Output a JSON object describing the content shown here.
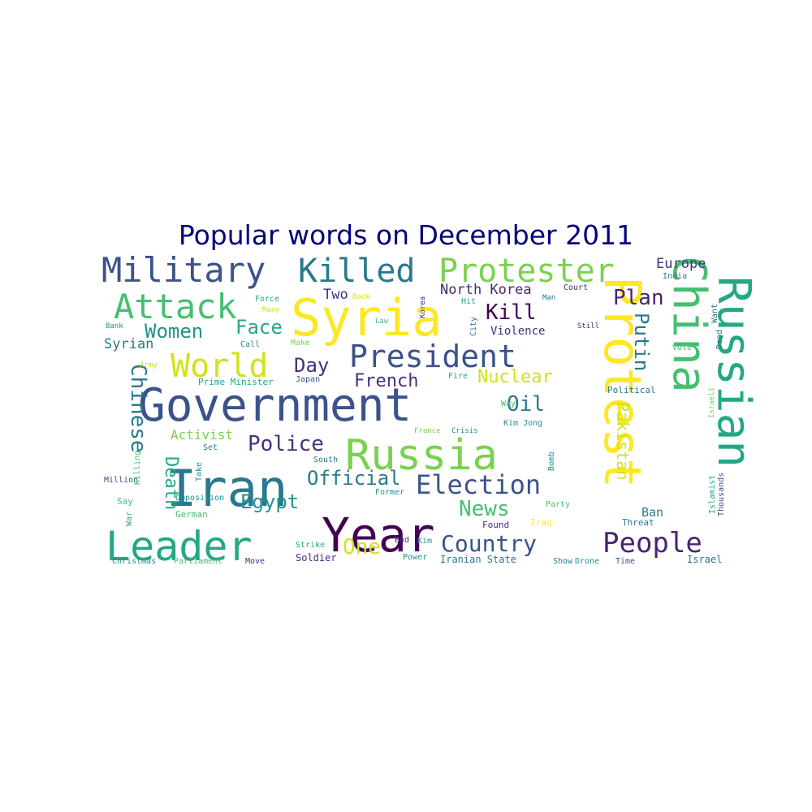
{
  "title": "Popular words on December 2011",
  "title_color": "#000080",
  "palette": {
    "navy": "#3b528b",
    "indigo": "#472f7d",
    "deep": "#440154",
    "purple": "#482475",
    "teal": "#21918c",
    "teal2": "#2a788e",
    "green": "#22a884",
    "green2": "#44bf70",
    "lime": "#7ad151",
    "yellow": "#fde725",
    "yellow2": "#d2e21b"
  },
  "words": [
    {
      "text": "Government",
      "color": "navy"
    },
    {
      "text": "Syria",
      "color": "yellow"
    },
    {
      "text": "Russia",
      "color": "lime"
    },
    {
      "text": "Protest",
      "color": "yellow"
    },
    {
      "text": "Iran",
      "color": "teal2"
    },
    {
      "text": "Year",
      "color": "deep"
    },
    {
      "text": "Leader",
      "color": "green"
    },
    {
      "text": "China",
      "color": "green2"
    },
    {
      "text": "Russian",
      "color": "green"
    },
    {
      "text": "Military",
      "color": "navy"
    },
    {
      "text": "Killed",
      "color": "teal2"
    },
    {
      "text": "Protester",
      "color": "lime"
    },
    {
      "text": "President",
      "color": "navy"
    },
    {
      "text": "Attack",
      "color": "green2"
    },
    {
      "text": "World",
      "color": "yellow2"
    },
    {
      "text": "People",
      "color": "purple"
    },
    {
      "text": "Election",
      "color": "navy"
    },
    {
      "text": "Country",
      "color": "navy"
    },
    {
      "text": "Women",
      "color": "teal"
    },
    {
      "text": "Face",
      "color": "green"
    },
    {
      "text": "Chinese",
      "color": "teal2"
    },
    {
      "text": "Police",
      "color": "indigo"
    },
    {
      "text": "Official",
      "color": "teal2"
    },
    {
      "text": "Day",
      "color": "indigo"
    },
    {
      "text": "French",
      "color": "indigo"
    },
    {
      "text": "Kill",
      "color": "deep"
    },
    {
      "text": "Plan",
      "color": "purple"
    },
    {
      "text": "Putin",
      "color": "teal2"
    },
    {
      "text": "Pakistan",
      "color": "yellow2"
    },
    {
      "text": "Nuclear",
      "color": "yellow2"
    },
    {
      "text": "Oil",
      "color": "teal2"
    },
    {
      "text": "News",
      "color": "green2"
    },
    {
      "text": "Egypt",
      "color": "teal"
    },
    {
      "text": "Death",
      "color": "green"
    },
    {
      "text": "One",
      "color": "yellow2"
    },
    {
      "text": "Europe",
      "color": "indigo"
    },
    {
      "text": "North Korea",
      "color": "purple"
    },
    {
      "text": "Two",
      "color": "indigo"
    },
    {
      "text": "Syrian",
      "color": "teal2"
    },
    {
      "text": "Activist",
      "color": "lime"
    },
    {
      "text": "Violence",
      "color": "indigo"
    },
    {
      "text": "Ban",
      "color": "teal2"
    },
    {
      "text": "Israel",
      "color": "teal2"
    },
    {
      "text": "Soldier",
      "color": "indigo"
    },
    {
      "text": "Iranian State",
      "color": "teal2"
    },
    {
      "text": "Christmas",
      "color": "teal"
    },
    {
      "text": "Parliament",
      "color": "green2"
    },
    {
      "text": "Move",
      "color": "indigo"
    },
    {
      "text": "Power",
      "color": "teal"
    },
    {
      "text": "Show",
      "color": "teal2"
    },
    {
      "text": "Drone",
      "color": "teal"
    },
    {
      "text": "Time",
      "color": "navy"
    },
    {
      "text": "Strike",
      "color": "green"
    },
    {
      "text": "End",
      "color": "indigo"
    },
    {
      "text": "Kim",
      "color": "teal"
    },
    {
      "text": "Found",
      "color": "indigo"
    },
    {
      "text": "Iraq",
      "color": "yellow"
    },
    {
      "text": "Party",
      "color": "green2"
    },
    {
      "text": "Threat",
      "color": "teal2"
    },
    {
      "text": "Former",
      "color": "teal"
    },
    {
      "text": "Opposition",
      "color": "teal"
    },
    {
      "text": "German",
      "color": "green2"
    },
    {
      "text": "Say",
      "color": "green2"
    },
    {
      "text": "Million",
      "color": "navy"
    },
    {
      "text": "War",
      "color": "green"
    },
    {
      "text": "Killing",
      "color": "green2"
    },
    {
      "text": "Take",
      "color": "teal"
    },
    {
      "text": "Set",
      "color": "teal2"
    },
    {
      "text": "South",
      "color": "teal2"
    },
    {
      "text": "France",
      "color": "lime"
    },
    {
      "text": "Crisis",
      "color": "teal"
    },
    {
      "text": "Kim Jong",
      "color": "teal"
    },
    {
      "text": "Way",
      "color": "green2"
    },
    {
      "text": "Bomb",
      "color": "teal"
    },
    {
      "text": "Prime Minister",
      "color": "green"
    },
    {
      "text": "Japan",
      "color": "navy"
    },
    {
      "text": "Fire",
      "color": "green"
    },
    {
      "text": "Political",
      "color": "teal2"
    },
    {
      "text": "Thousands",
      "color": "navy"
    },
    {
      "text": "Islamist",
      "color": "green"
    },
    {
      "text": "Israeli",
      "color": "lime"
    },
    {
      "text": "Dead",
      "color": "teal2"
    },
    {
      "text": "Want",
      "color": "teal2"
    },
    {
      "text": "Vote",
      "color": "green2"
    },
    {
      "text": "India",
      "color": "teal2"
    },
    {
      "text": "Court",
      "color": "indigo"
    },
    {
      "text": "Man",
      "color": "teal2"
    },
    {
      "text": "Hit",
      "color": "green"
    },
    {
      "text": "Still",
      "color": "indigo"
    },
    {
      "text": "City",
      "color": "teal2"
    },
    {
      "text": "Korea",
      "color": "indigo"
    },
    {
      "text": "Law",
      "color": "green2"
    },
    {
      "text": "Back",
      "color": "yellow2"
    },
    {
      "text": "Force",
      "color": "green"
    },
    {
      "text": "Many",
      "color": "yellow2"
    },
    {
      "text": "Make",
      "color": "lime"
    },
    {
      "text": "Call",
      "color": "teal"
    },
    {
      "text": "Bank",
      "color": "teal"
    },
    {
      "text": "Army",
      "color": "yellow2"
    }
  ]
}
